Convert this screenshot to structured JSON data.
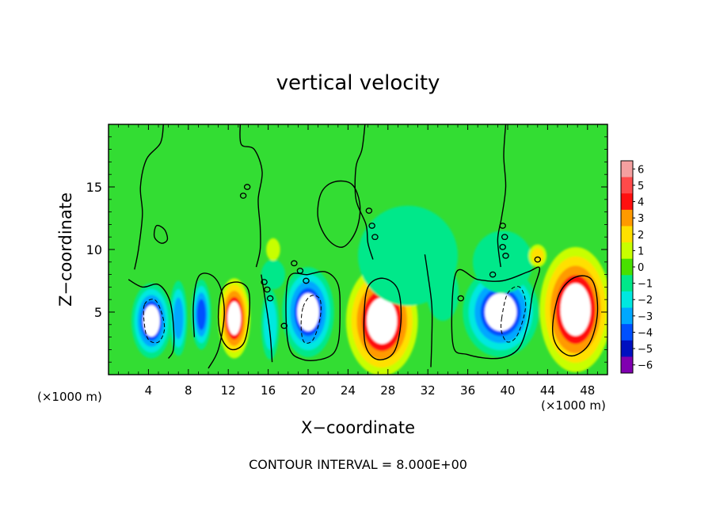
{
  "chart_data": {
    "type": "heatmap",
    "title": "vertical velocity",
    "xlabel": "X−coordinate",
    "ylabel": "Z−coordinate",
    "x_unit_left": "(×1000 m)",
    "x_unit_right": "(×1000 m)",
    "footer": "CONTOUR INTERVAL = 8.000E+00",
    "xlim": [
      0,
      50
    ],
    "ylim": [
      0,
      20
    ],
    "x_ticks": [
      4,
      8,
      12,
      16,
      20,
      24,
      28,
      32,
      36,
      40,
      44,
      48
    ],
    "x_tick_labels": [
      "4",
      "8",
      "12",
      "16",
      "20",
      "24",
      "28",
      "32",
      "36",
      "40",
      "44",
      "48"
    ],
    "y_ticks": [
      5,
      10,
      15
    ],
    "y_tick_labels": [
      "5",
      "10",
      "15"
    ],
    "colorbar": {
      "levels": [
        6,
        5,
        4,
        3,
        2,
        1,
        0,
        -1,
        -2,
        -3,
        -4,
        -5,
        -6
      ],
      "labels": [
        "6",
        "5",
        "4",
        "3",
        "2",
        "1",
        "0",
        "−1",
        "−2",
        "−3",
        "−4",
        "−5",
        "−6"
      ],
      "colors": [
        "#f4a0a0",
        "#ff4a4a",
        "#ff1010",
        "#ff9a00",
        "#ffe000",
        "#c8ff00",
        "#48e000",
        "#00e88a",
        "#00e8e0",
        "#00a8ff",
        "#0050ff",
        "#0010c0",
        "#8000b0"
      ]
    },
    "background_color": "#33dd33",
    "cells": [
      {
        "x": 4.3,
        "z": 4.3,
        "rx": 2.0,
        "rz": 3.0,
        "w": -5.0
      },
      {
        "x": 7.0,
        "z": 4.5,
        "rx": 0.9,
        "rz": 3.0,
        "w": -3.5
      },
      {
        "x": 9.3,
        "z": 4.8,
        "rx": 1.0,
        "rz": 2.8,
        "w": -4.2
      },
      {
        "x": 12.6,
        "z": 4.5,
        "rx": 1.6,
        "rz": 3.2,
        "w": 5.0
      },
      {
        "x": 16.2,
        "z": 4.0,
        "rx": 0.9,
        "rz": 2.8,
        "w": -2.8
      },
      {
        "x": 20.0,
        "z": 5.0,
        "rx": 2.6,
        "rz": 3.6,
        "w": -5.0
      },
      {
        "x": 27.4,
        "z": 4.3,
        "rx": 3.6,
        "rz": 4.4,
        "w": 5.2
      },
      {
        "x": 33.5,
        "z": 6.5,
        "rx": 1.6,
        "rz": 2.2,
        "w": -1.7
      },
      {
        "x": 39.3,
        "z": 5.0,
        "rx": 3.8,
        "rz": 3.6,
        "w": -5.0
      },
      {
        "x": 46.8,
        "z": 5.2,
        "rx": 3.6,
        "rz": 5.0,
        "w": 5.2
      },
      {
        "x": 16.5,
        "z": 8.0,
        "rx": 1.2,
        "rz": 1.2,
        "w": -1.2
      },
      {
        "x": 18.0,
        "z": 15.0,
        "rx": 3.5,
        "rz": 3.8,
        "w": -0.8
      },
      {
        "x": 30.0,
        "z": 9.5,
        "rx": 5.0,
        "rz": 4.0,
        "w": -1.2
      },
      {
        "x": 39.5,
        "z": 9.0,
        "rx": 3.0,
        "rz": 2.5,
        "w": -1.5
      },
      {
        "x": 22.0,
        "z": 11.0,
        "rx": 4.0,
        "rz": 3.0,
        "w": -0.6
      },
      {
        "x": 5.0,
        "z": 15.0,
        "rx": 4.0,
        "rz": 4.0,
        "w": -0.5
      },
      {
        "x": 44.0,
        "z": 16.0,
        "rx": 3.0,
        "rz": 3.0,
        "w": -0.4
      },
      {
        "x": 13.0,
        "z": 14.0,
        "rx": 2.5,
        "rz": 3.0,
        "w": -0.9
      },
      {
        "x": 16.5,
        "z": 10.0,
        "rx": 0.7,
        "rz": 0.9,
        "w": 1.8
      },
      {
        "x": 43.0,
        "z": 9.5,
        "rx": 0.9,
        "rz": 0.9,
        "w": 2.5
      }
    ],
    "contours": [
      {
        "style": "solid",
        "points": [
          [
            22.6,
            15.4
          ],
          [
            24.4,
            15.2
          ],
          [
            25.2,
            13.5
          ],
          [
            24.8,
            11.5
          ],
          [
            23.5,
            10.2
          ],
          [
            22.0,
            10.8
          ],
          [
            21.0,
            12.5
          ],
          [
            21.3,
            14.5
          ]
        ]
      },
      {
        "style": "solid",
        "points": [
          [
            4.8,
            11.9
          ],
          [
            5.6,
            11.6
          ],
          [
            5.9,
            10.8
          ],
          [
            5.3,
            10.5
          ],
          [
            4.6,
            11.0
          ]
        ]
      },
      {
        "style": "solid",
        "points": [
          [
            11.0,
            4.6
          ],
          [
            11.4,
            6.8
          ],
          [
            12.8,
            7.4
          ],
          [
            14.0,
            6.8
          ],
          [
            14.1,
            4.8
          ],
          [
            13.6,
            2.6
          ],
          [
            12.4,
            2.0
          ],
          [
            11.4,
            2.8
          ]
        ]
      },
      {
        "style": "solid",
        "points": [
          [
            25.6,
            4.5
          ],
          [
            26.0,
            7.0
          ],
          [
            27.5,
            7.7
          ],
          [
            29.0,
            6.8
          ],
          [
            29.3,
            4.2
          ],
          [
            28.6,
            1.8
          ],
          [
            27.0,
            1.2
          ],
          [
            25.8,
            2.2
          ]
        ]
      },
      {
        "style": "solid",
        "points": [
          [
            44.5,
            3.8
          ],
          [
            45.2,
            6.5
          ],
          [
            46.8,
            7.8
          ],
          [
            48.5,
            7.5
          ],
          [
            49.0,
            5.0
          ],
          [
            48.2,
            2.5
          ],
          [
            46.5,
            1.5
          ],
          [
            45.0,
            2.2
          ]
        ]
      },
      {
        "style": "solid",
        "points": [
          [
            2.0,
            7.6
          ],
          [
            3.4,
            7.0
          ],
          [
            5.0,
            7.2
          ],
          [
            6.1,
            6.0
          ],
          [
            6.5,
            4.0
          ],
          [
            6.5,
            2.0
          ],
          [
            6.0,
            1.3
          ]
        ]
      },
      {
        "style": "solid",
        "points": [
          [
            8.6,
            3.0
          ],
          [
            8.5,
            5.5
          ],
          [
            9.0,
            7.8
          ],
          [
            10.2,
            8.0
          ],
          [
            11.2,
            7.0
          ],
          [
            11.6,
            4.8
          ],
          [
            11.0,
            2.0
          ],
          [
            10.0,
            0.5
          ]
        ]
      },
      {
        "style": "solid",
        "points": [
          [
            18.0,
            7.6
          ],
          [
            20.0,
            8.0
          ],
          [
            21.8,
            8.2
          ],
          [
            23.0,
            7.2
          ],
          [
            23.2,
            5.0
          ],
          [
            23.0,
            2.5
          ],
          [
            22.0,
            1.4
          ],
          [
            19.5,
            1.2
          ],
          [
            18.0,
            2.5
          ]
        ]
      },
      {
        "style": "solid",
        "points": [
          [
            34.8,
            8.1
          ],
          [
            37.0,
            7.6
          ],
          [
            39.5,
            7.5
          ],
          [
            42.0,
            8.2
          ],
          [
            43.2,
            8.5
          ],
          [
            42.5,
            6.5
          ],
          [
            42.0,
            4.0
          ],
          [
            41.0,
            2.0
          ],
          [
            39.0,
            1.3
          ],
          [
            36.0,
            1.6
          ],
          [
            34.5,
            2.5
          ]
        ]
      },
      {
        "style": "solid",
        "points": [
          [
            5.5,
            20.0
          ],
          [
            5.2,
            18.5
          ],
          [
            3.8,
            17.2
          ],
          [
            3.2,
            15.0
          ],
          [
            3.4,
            12.8
          ],
          [
            3.0,
            10.0
          ],
          [
            2.6,
            8.4
          ]
        ]
      },
      {
        "style": "solid",
        "points": [
          [
            13.2,
            20.0
          ],
          [
            13.3,
            18.4
          ],
          [
            14.6,
            18.0
          ],
          [
            15.4,
            16.2
          ],
          [
            15.0,
            14.0
          ],
          [
            15.2,
            11.8
          ],
          [
            15.2,
            10.0
          ],
          [
            14.8,
            8.6
          ]
        ]
      },
      {
        "style": "solid",
        "points": [
          [
            25.7,
            20.0
          ],
          [
            25.4,
            18.0
          ],
          [
            24.8,
            16.6
          ],
          [
            24.8,
            14.0
          ],
          [
            25.8,
            12.0
          ],
          [
            26.0,
            10.5
          ],
          [
            26.5,
            9.2
          ]
        ]
      },
      {
        "style": "solid",
        "points": [
          [
            39.8,
            20.0
          ],
          [
            39.6,
            17.5
          ],
          [
            39.8,
            15.0
          ],
          [
            39.4,
            12.6
          ],
          [
            39.0,
            10.8
          ],
          [
            39.3,
            8.6
          ]
        ]
      },
      {
        "style": "solid",
        "points": [
          [
            31.7,
            9.6
          ],
          [
            32.0,
            8.0
          ],
          [
            32.4,
            5.5
          ],
          [
            32.4,
            3.0
          ],
          [
            32.3,
            0.6
          ]
        ]
      },
      {
        "style": "solid",
        "points": [
          [
            15.3,
            8.0
          ],
          [
            15.8,
            5.5
          ],
          [
            16.2,
            3.2
          ],
          [
            16.4,
            1.0
          ]
        ]
      },
      {
        "style": "dashed",
        "points": [
          [
            3.6,
            5.6
          ],
          [
            4.6,
            6.0
          ],
          [
            5.3,
            5.0
          ],
          [
            5.6,
            3.6
          ],
          [
            5.0,
            2.6
          ],
          [
            4.0,
            2.8
          ],
          [
            3.6,
            4.0
          ]
        ]
      },
      {
        "style": "dashed",
        "points": [
          [
            19.5,
            5.4
          ],
          [
            20.3,
            6.3
          ],
          [
            21.2,
            6.0
          ],
          [
            21.2,
            4.5
          ],
          [
            20.5,
            2.8
          ],
          [
            19.6,
            2.6
          ],
          [
            19.3,
            3.8
          ]
        ]
      },
      {
        "style": "dashed",
        "points": [
          [
            39.4,
            4.5
          ],
          [
            40.0,
            6.5
          ],
          [
            41.2,
            7.0
          ],
          [
            41.8,
            5.5
          ],
          [
            41.0,
            3.2
          ],
          [
            40.0,
            2.6
          ],
          [
            39.4,
            3.4
          ]
        ]
      }
    ],
    "contour_dots": [
      [
        13.5,
        14.3
      ],
      [
        13.9,
        15.0
      ],
      [
        15.6,
        7.4
      ],
      [
        15.9,
        6.8
      ],
      [
        16.2,
        6.1
      ],
      [
        18.6,
        8.9
      ],
      [
        19.2,
        8.3
      ],
      [
        19.8,
        7.5
      ],
      [
        26.1,
        13.1
      ],
      [
        26.4,
        11.9
      ],
      [
        26.7,
        11.0
      ],
      [
        39.5,
        11.9
      ],
      [
        39.7,
        11.0
      ],
      [
        39.5,
        10.2
      ],
      [
        39.8,
        9.5
      ],
      [
        38.5,
        8.0
      ],
      [
        35.3,
        6.1
      ],
      [
        17.6,
        3.9
      ],
      [
        43.0,
        9.2
      ]
    ]
  }
}
